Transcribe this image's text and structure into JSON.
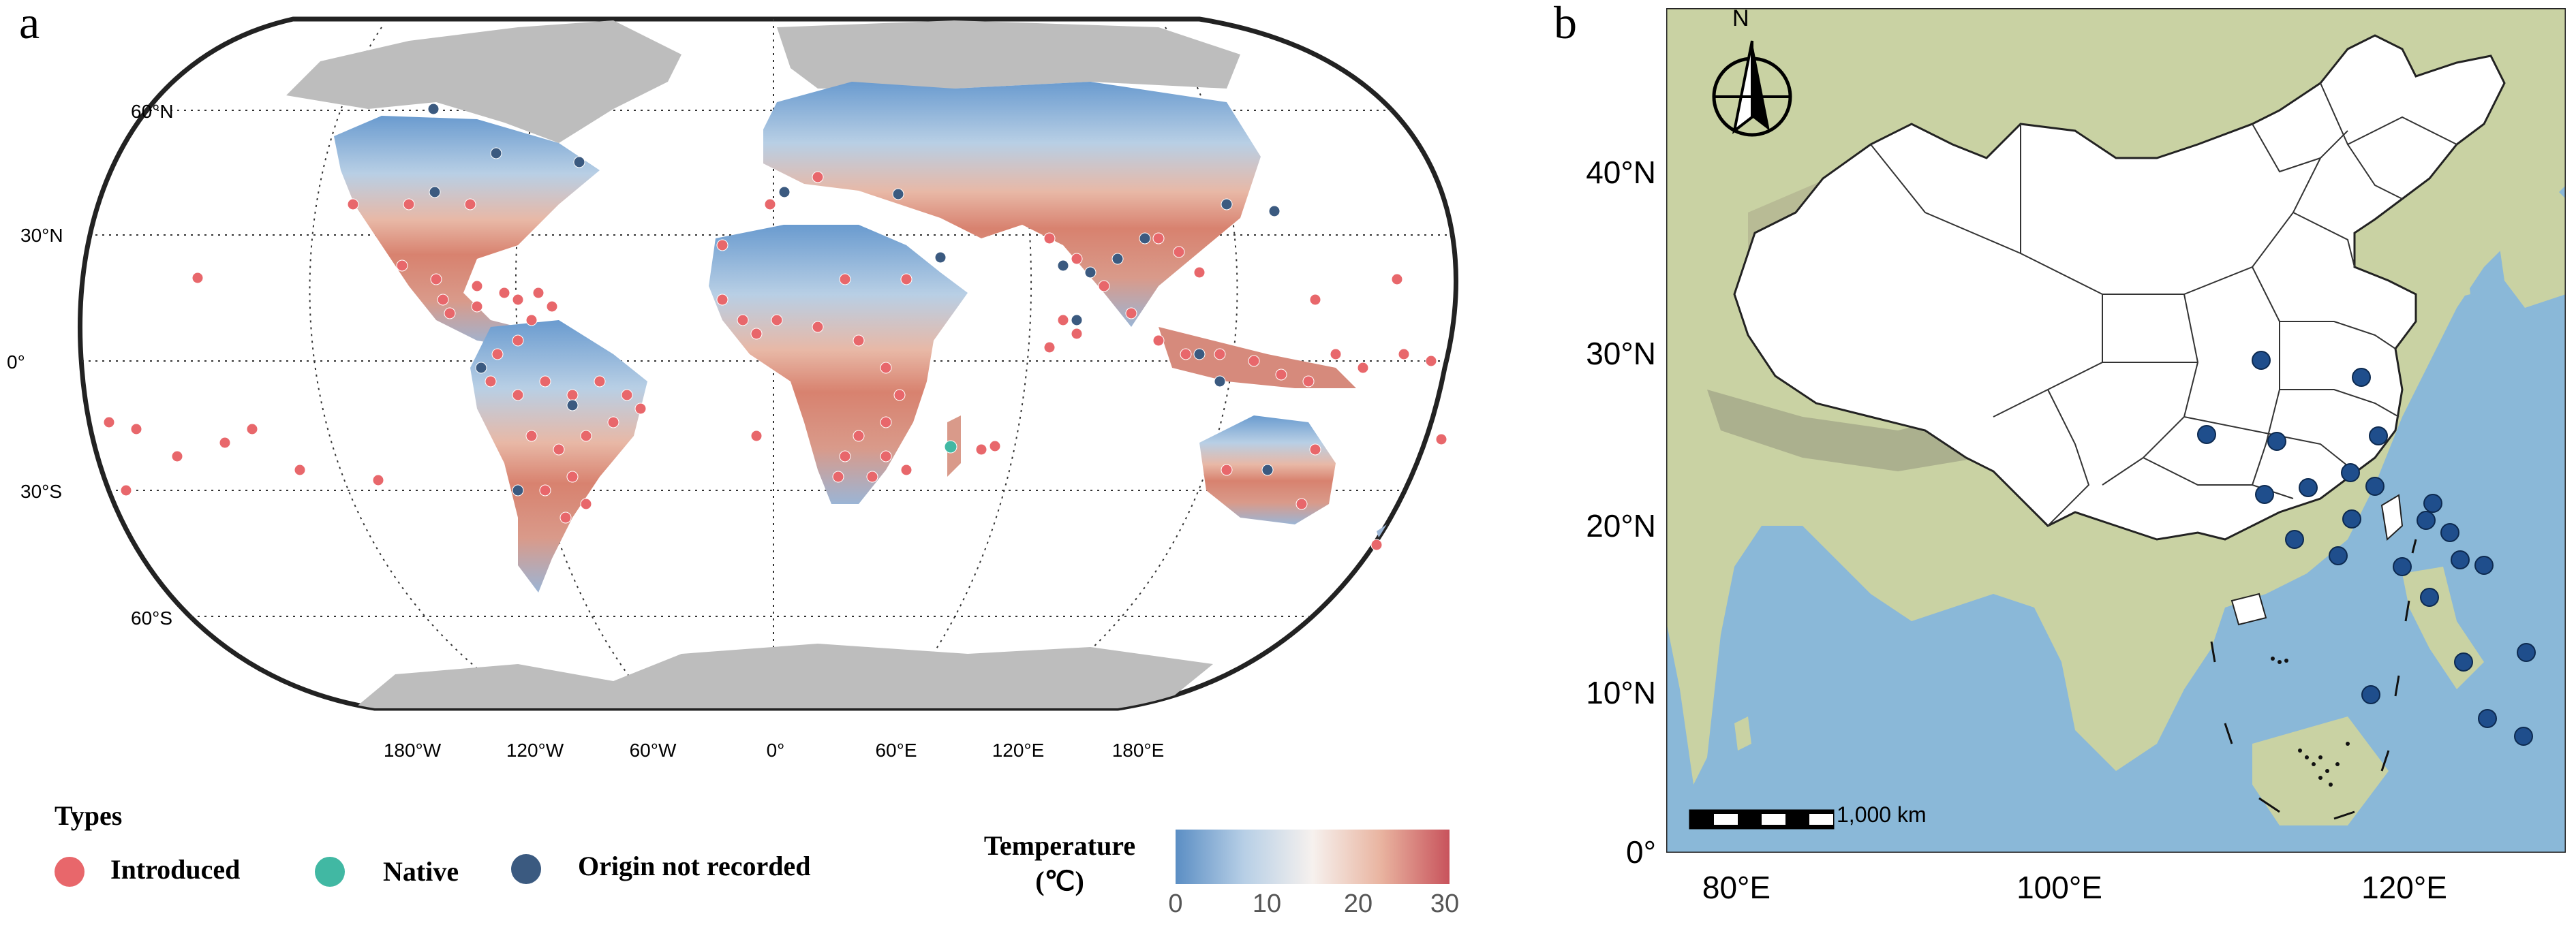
{
  "panel_a": {
    "letter": "a",
    "lat_labels": [
      "60°N",
      "30°N",
      "0°",
      "30°S",
      "60°S"
    ],
    "lon_labels": [
      "180°W",
      "120°W",
      "60°W",
      "0°",
      "60°E",
      "120°E",
      "180°E"
    ],
    "legend": {
      "title": "Types",
      "items": [
        {
          "label": "Introduced",
          "color": "#e8676b"
        },
        {
          "label": "Native",
          "color": "#41b8a3"
        },
        {
          "label": "Origin not recorded",
          "color": "#3b5a80"
        }
      ]
    },
    "colorbar": {
      "title_line1": "Temperature",
      "title_line2": "(℃)",
      "ticks": [
        "0",
        "10",
        "20",
        "30"
      ],
      "colors": [
        "#5b8ec4",
        "#b7cfe6",
        "#f6f1ee",
        "#e9b4a0",
        "#c8535c"
      ]
    }
  },
  "panel_b": {
    "letter": "b",
    "north_label": "N",
    "lat_labels": [
      "40°N",
      "30°N",
      "20°N",
      "10°N",
      "0°"
    ],
    "lon_labels": [
      "80°E",
      "100°E",
      "120°E"
    ],
    "scale_label": "1,000 km",
    "colors": {
      "ocean": "#8ab8d8",
      "land": "#c9d2a3",
      "china": "#ffffff",
      "marker": "#1f4e8c"
    }
  }
}
